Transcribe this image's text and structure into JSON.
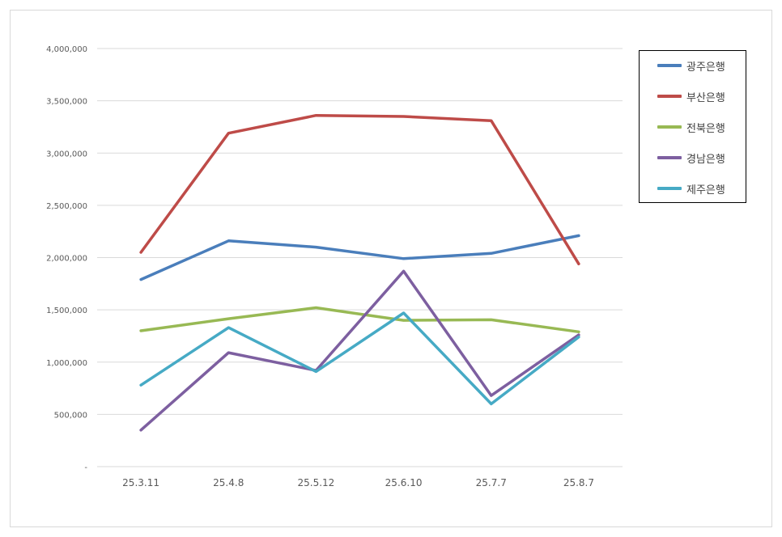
{
  "chart_data": {
    "type": "line",
    "title": "",
    "xlabel": "",
    "ylabel": "",
    "categories": [
      "25.3.11",
      "25.4.8",
      "25.5.12",
      "25.6.10",
      "25.7.7",
      "25.8.7"
    ],
    "ylim": [
      0,
      4000000
    ],
    "yticks": [
      0,
      500000,
      1000000,
      1500000,
      2000000,
      2500000,
      3000000,
      3500000,
      4000000
    ],
    "ytick_labels": [
      "-",
      "500,000",
      "1,000,000",
      "1,500,000",
      "2,000,000",
      "2,500,000",
      "3,000,000",
      "3,500,000",
      "4,000,000"
    ],
    "grid": true,
    "legend_position": "right",
    "series": [
      {
        "name": "광주은행",
        "color": "#4a7ebb",
        "values": [
          1790000,
          2160000,
          2100000,
          1990000,
          2040000,
          2210000
        ]
      },
      {
        "name": "부산은행",
        "color": "#be4b48",
        "values": [
          2050000,
          3190000,
          3360000,
          3350000,
          3310000,
          1940000
        ]
      },
      {
        "name": "전북은행",
        "color": "#98b954",
        "values": [
          1300000,
          1415000,
          1520000,
          1400000,
          1405000,
          1290000
        ]
      },
      {
        "name": "경남은행",
        "color": "#7d5fa0",
        "values": [
          350000,
          1090000,
          920000,
          1870000,
          680000,
          1260000
        ]
      },
      {
        "name": "제주은행",
        "color": "#46aac5",
        "values": [
          780000,
          1330000,
          910000,
          1470000,
          600000,
          1240000
        ]
      }
    ]
  }
}
